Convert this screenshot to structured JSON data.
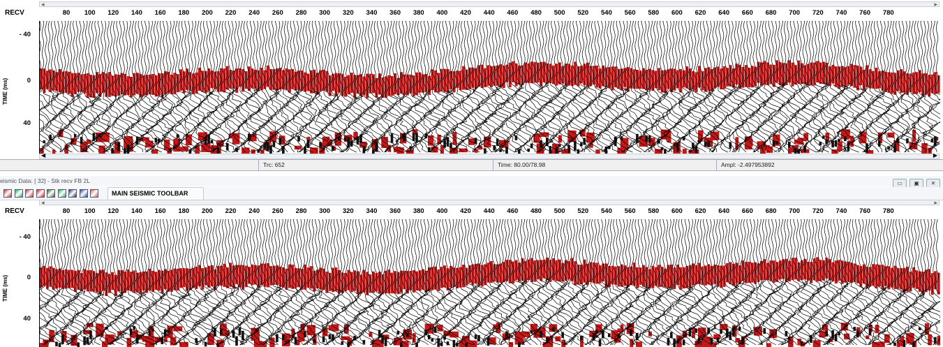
{
  "panels": [
    {
      "axis_label": "RECV",
      "y_title": "TIME (ms)",
      "y_ticks": [
        "- 40",
        "0",
        "40"
      ],
      "x_ticks": [
        "80",
        "100",
        "120",
        "140",
        "160",
        "180",
        "200",
        "220",
        "240",
        "260",
        "280",
        "300",
        "320",
        "340",
        "360",
        "380",
        "400",
        "420",
        "440",
        "460",
        "480",
        "500",
        "520",
        "540",
        "560",
        "580",
        "600",
        "620",
        "640",
        "660",
        "680",
        "700",
        "720",
        "740",
        "760",
        "780"
      ]
    },
    {
      "axis_label": "RECV",
      "y_title": "TIME (ms)",
      "y_ticks": [
        "- 40",
        "0",
        "40"
      ],
      "x_ticks": [
        "80",
        "100",
        "120",
        "140",
        "160",
        "180",
        "200",
        "220",
        "240",
        "260",
        "280",
        "300",
        "320",
        "340",
        "360",
        "380",
        "400",
        "420",
        "440",
        "460",
        "480",
        "500",
        "520",
        "540",
        "560",
        "580",
        "600",
        "620",
        "640",
        "660",
        "680",
        "700",
        "720",
        "740",
        "760",
        "780"
      ]
    }
  ],
  "status": {
    "trace": "Trc: 652",
    "time": "Time: 80.00/78.98",
    "ampl": "Ampl: -2.497953892"
  },
  "window": {
    "title": "eismic Data: [ 32] - Stk recv FB 2L",
    "toolbar_label": "MAIN SEISMIC TOOLBAR"
  },
  "toolbar_icons": [
    "seismic-traces-icon",
    "zoom-icon",
    "color-bar-icon",
    "wiggle-icon",
    "velocity-icon",
    "spectrum-icon",
    "display-icon",
    "flip-icon",
    "header-icon"
  ],
  "colors": {
    "fill": "#c41818",
    "trace": "#000000"
  }
}
